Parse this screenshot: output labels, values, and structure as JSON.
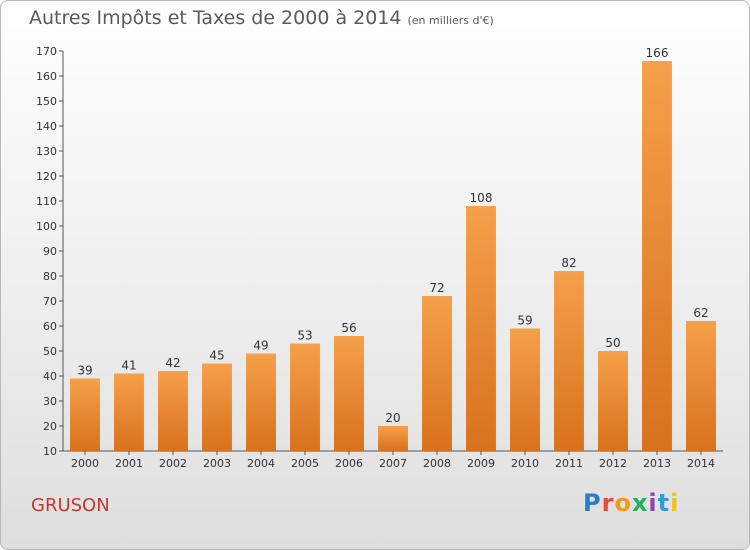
{
  "title": {
    "main": "Autres Impôts et Taxes de 2000 à 2014",
    "sub": "(en milliers d'€)"
  },
  "commune": "GRUSON",
  "brand": {
    "letters": [
      "P",
      "r",
      "o",
      "x",
      "i",
      "t",
      "i"
    ],
    "colors": [
      "#2d7ac6",
      "#e74c3c",
      "#f39c12",
      "#27ae60",
      "#8e44ad",
      "#3498db",
      "#f1c40f"
    ]
  },
  "chart_data": {
    "type": "bar",
    "categories": [
      "2000",
      "2001",
      "2002",
      "2003",
      "2004",
      "2005",
      "2006",
      "2007",
      "2008",
      "2009",
      "2010",
      "2011",
      "2012",
      "2013",
      "2014"
    ],
    "values": [
      39,
      41,
      42,
      45,
      49,
      53,
      56,
      20,
      72,
      108,
      59,
      82,
      50,
      166,
      62
    ],
    "ylim": [
      10,
      170
    ],
    "yticks": [
      10,
      20,
      30,
      40,
      50,
      60,
      70,
      80,
      90,
      100,
      110,
      120,
      130,
      140,
      150,
      160,
      170
    ],
    "bar_color_top": "#f5a04a",
    "bar_color_bottom": "#d9711c",
    "grid": false,
    "xlabel": "",
    "ylabel": ""
  }
}
